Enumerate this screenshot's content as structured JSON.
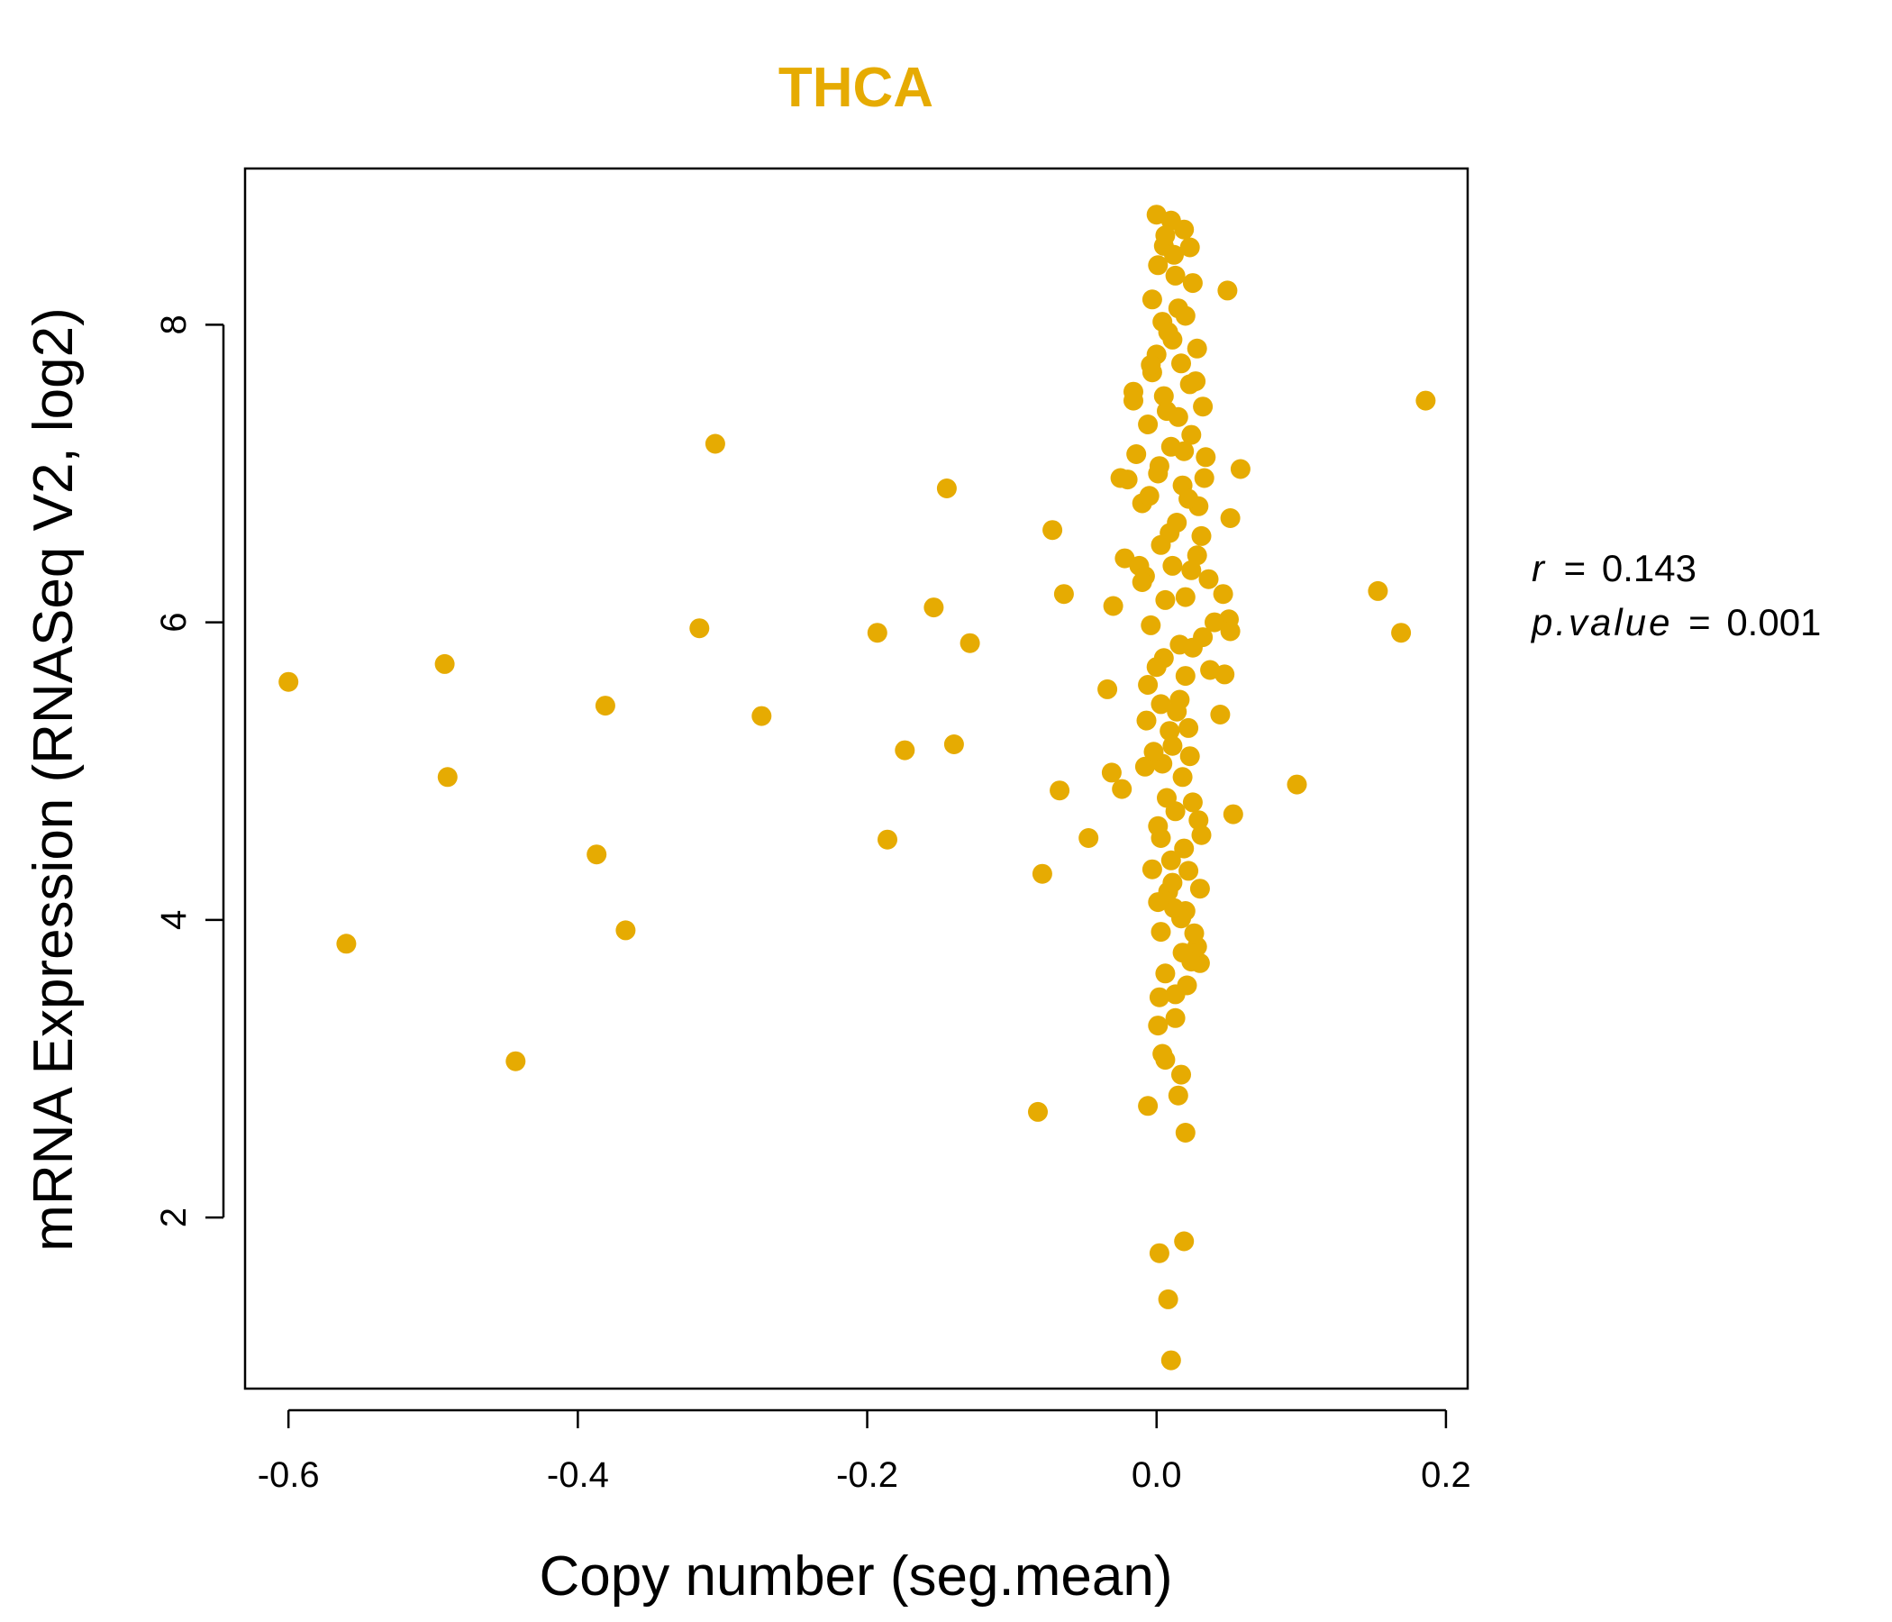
{
  "chart_data": {
    "type": "scatter",
    "title": "THCA",
    "xlabel": "Copy number (seg.mean)",
    "ylabel": "mRNA Expression (RNASeq V2, log2)",
    "xlim": [
      -0.63,
      0.215
    ],
    "ylim": [
      0.85,
      9.05
    ],
    "xticks": [
      -0.6,
      -0.4,
      -0.2,
      0.0,
      0.2
    ],
    "xtick_labels": [
      "-0.6",
      "-0.4",
      "-0.2",
      "0.0",
      "0.2"
    ],
    "yticks": [
      2,
      4,
      6,
      8
    ],
    "ytick_labels": [
      "2",
      "4",
      "6",
      "8"
    ],
    "grid": false,
    "point_color": "#E6AB02",
    "stats": {
      "r_label": "r",
      "r_value": "0.143",
      "p_label": "p.value",
      "p_value": "0.001",
      "eq": "="
    },
    "points": [
      [
        -0.6,
        5.6
      ],
      [
        -0.56,
        3.84
      ],
      [
        -0.492,
        5.72
      ],
      [
        -0.49,
        4.96
      ],
      [
        -0.443,
        3.05
      ],
      [
        -0.387,
        4.44
      ],
      [
        -0.381,
        5.44
      ],
      [
        -0.367,
        3.93
      ],
      [
        -0.316,
        5.96
      ],
      [
        -0.305,
        7.2
      ],
      [
        -0.273,
        5.37
      ],
      [
        -0.193,
        5.93
      ],
      [
        -0.186,
        4.54
      ],
      [
        -0.174,
        5.14
      ],
      [
        -0.154,
        6.1
      ],
      [
        -0.145,
        6.9
      ],
      [
        -0.14,
        5.18
      ],
      [
        -0.129,
        5.86
      ],
      [
        -0.082,
        2.71
      ],
      [
        -0.079,
        4.31
      ],
      [
        -0.072,
        6.62
      ],
      [
        -0.067,
        4.87
      ],
      [
        -0.064,
        6.19
      ],
      [
        -0.047,
        4.55
      ],
      [
        -0.034,
        5.55
      ],
      [
        -0.03,
        6.11
      ],
      [
        -0.031,
        4.99
      ],
      [
        -0.024,
        4.88
      ],
      [
        -0.022,
        6.43
      ],
      [
        -0.025,
        6.97
      ],
      [
        -0.016,
        7.55
      ],
      [
        -0.014,
        7.13
      ],
      [
        -0.01,
        6.8
      ],
      [
        -0.012,
        6.38
      ],
      [
        -0.008,
        5.03
      ],
      [
        -0.006,
        2.75
      ],
      [
        0.002,
        1.76
      ],
      [
        0.008,
        1.45
      ],
      [
        0.01,
        1.04
      ],
      [
        0.019,
        1.84
      ],
      [
        0.02,
        2.57
      ],
      [
        0.015,
        2.82
      ],
      [
        0.017,
        2.96
      ],
      [
        0.006,
        3.06
      ],
      [
        0.004,
        3.1
      ],
      [
        0.001,
        3.29
      ],
      [
        0.002,
        3.48
      ],
      [
        0.013,
        3.34
      ],
      [
        0.006,
        3.64
      ],
      [
        0.021,
        3.56
      ],
      [
        0.024,
        3.72
      ],
      [
        0.03,
        3.71
      ],
      [
        0.028,
        3.82
      ],
      [
        0.026,
        3.91
      ],
      [
        0.003,
        3.92
      ],
      [
        0.02,
        4.06
      ],
      [
        0.017,
        4.01
      ],
      [
        0.012,
        4.08
      ],
      [
        0.008,
        4.19
      ],
      [
        0.03,
        4.21
      ],
      [
        0.01,
        4.4
      ],
      [
        0.022,
        4.33
      ],
      [
        -0.003,
        4.34
      ],
      [
        0.003,
        4.55
      ],
      [
        0.031,
        4.57
      ],
      [
        0.029,
        4.67
      ],
      [
        0.053,
        4.71
      ],
      [
        0.013,
        4.73
      ],
      [
        0.025,
        4.79
      ],
      [
        0.001,
        4.63
      ],
      [
        0.018,
        4.96
      ],
      [
        0.097,
        4.91
      ],
      [
        0.004,
        5.05
      ],
      [
        0.011,
        5.17
      ],
      [
        -0.007,
        5.34
      ],
      [
        0.022,
        5.29
      ],
      [
        -0.002,
        5.13
      ],
      [
        0.009,
        5.27
      ],
      [
        0.044,
        5.38
      ],
      [
        0.003,
        5.45
      ],
      [
        0.016,
        5.48
      ],
      [
        -0.006,
        5.58
      ],
      [
        0.02,
        5.64
      ],
      [
        0.037,
        5.68
      ],
      [
        0.047,
        5.65
      ],
      [
        0.005,
        5.76
      ],
      [
        0.025,
        5.83
      ],
      [
        0.032,
        5.9
      ],
      [
        0.05,
        6.02
      ],
      [
        0.051,
        5.94
      ],
      [
        -0.004,
        5.98
      ],
      [
        0.04,
        6.0
      ],
      [
        0.153,
        6.21
      ],
      [
        0.169,
        5.93
      ],
      [
        0.046,
        6.19
      ],
      [
        0.036,
        6.29
      ],
      [
        0.02,
        6.17
      ],
      [
        -0.008,
        6.31
      ],
      [
        0.011,
        6.38
      ],
      [
        0.028,
        6.45
      ],
      [
        0.003,
        6.52
      ],
      [
        0.031,
        6.58
      ],
      [
        -0.01,
        6.27
      ],
      [
        0.014,
        6.67
      ],
      [
        0.051,
        6.7
      ],
      [
        0.029,
        6.78
      ],
      [
        -0.005,
        6.85
      ],
      [
        0.018,
        6.92
      ],
      [
        0.033,
        6.97
      ],
      [
        0.058,
        7.03
      ],
      [
        -0.02,
        6.96
      ],
      [
        0.002,
        7.05
      ],
      [
        0.034,
        7.11
      ],
      [
        0.01,
        7.18
      ],
      [
        0.024,
        7.26
      ],
      [
        -0.006,
        7.33
      ],
      [
        0.015,
        7.38
      ],
      [
        0.032,
        7.45
      ],
      [
        -0.016,
        7.49
      ],
      [
        0.005,
        7.52
      ],
      [
        0.023,
        7.6
      ],
      [
        -0.003,
        7.68
      ],
      [
        0.017,
        7.74
      ],
      [
        0.186,
        7.49
      ],
      [
        0.028,
        7.84
      ],
      [
        0.0,
        7.8
      ],
      [
        0.011,
        7.9
      ],
      [
        0.004,
        8.02
      ],
      [
        0.015,
        8.11
      ],
      [
        -0.003,
        8.17
      ],
      [
        0.025,
        8.28
      ],
      [
        0.013,
        8.33
      ],
      [
        0.049,
        8.23
      ],
      [
        0.001,
        8.4
      ],
      [
        0.005,
        8.53
      ],
      [
        0.023,
        8.52
      ],
      [
        0.019,
        8.64
      ],
      [
        0.01,
        8.7
      ],
      [
        0.0,
        8.74
      ],
      [
        0.006,
        8.6
      ],
      [
        0.012,
        8.47
      ],
      [
        0.02,
        8.06
      ],
      [
        0.008,
        7.95
      ],
      [
        -0.004,
        7.73
      ],
      [
        0.027,
        7.62
      ],
      [
        0.007,
        7.42
      ],
      [
        0.019,
        7.15
      ],
      [
        0.001,
        7.0
      ],
      [
        0.022,
        6.83
      ],
      [
        0.009,
        6.6
      ],
      [
        0.024,
        6.35
      ],
      [
        0.006,
        6.15
      ],
      [
        0.016,
        5.85
      ],
      [
        0.0,
        5.7
      ],
      [
        0.014,
        5.4
      ],
      [
        0.023,
        5.1
      ],
      [
        0.007,
        4.82
      ],
      [
        0.019,
        4.48
      ],
      [
        0.011,
        4.25
      ],
      [
        0.001,
        4.12
      ],
      [
        0.018,
        3.78
      ],
      [
        0.013,
        3.5
      ]
    ]
  }
}
